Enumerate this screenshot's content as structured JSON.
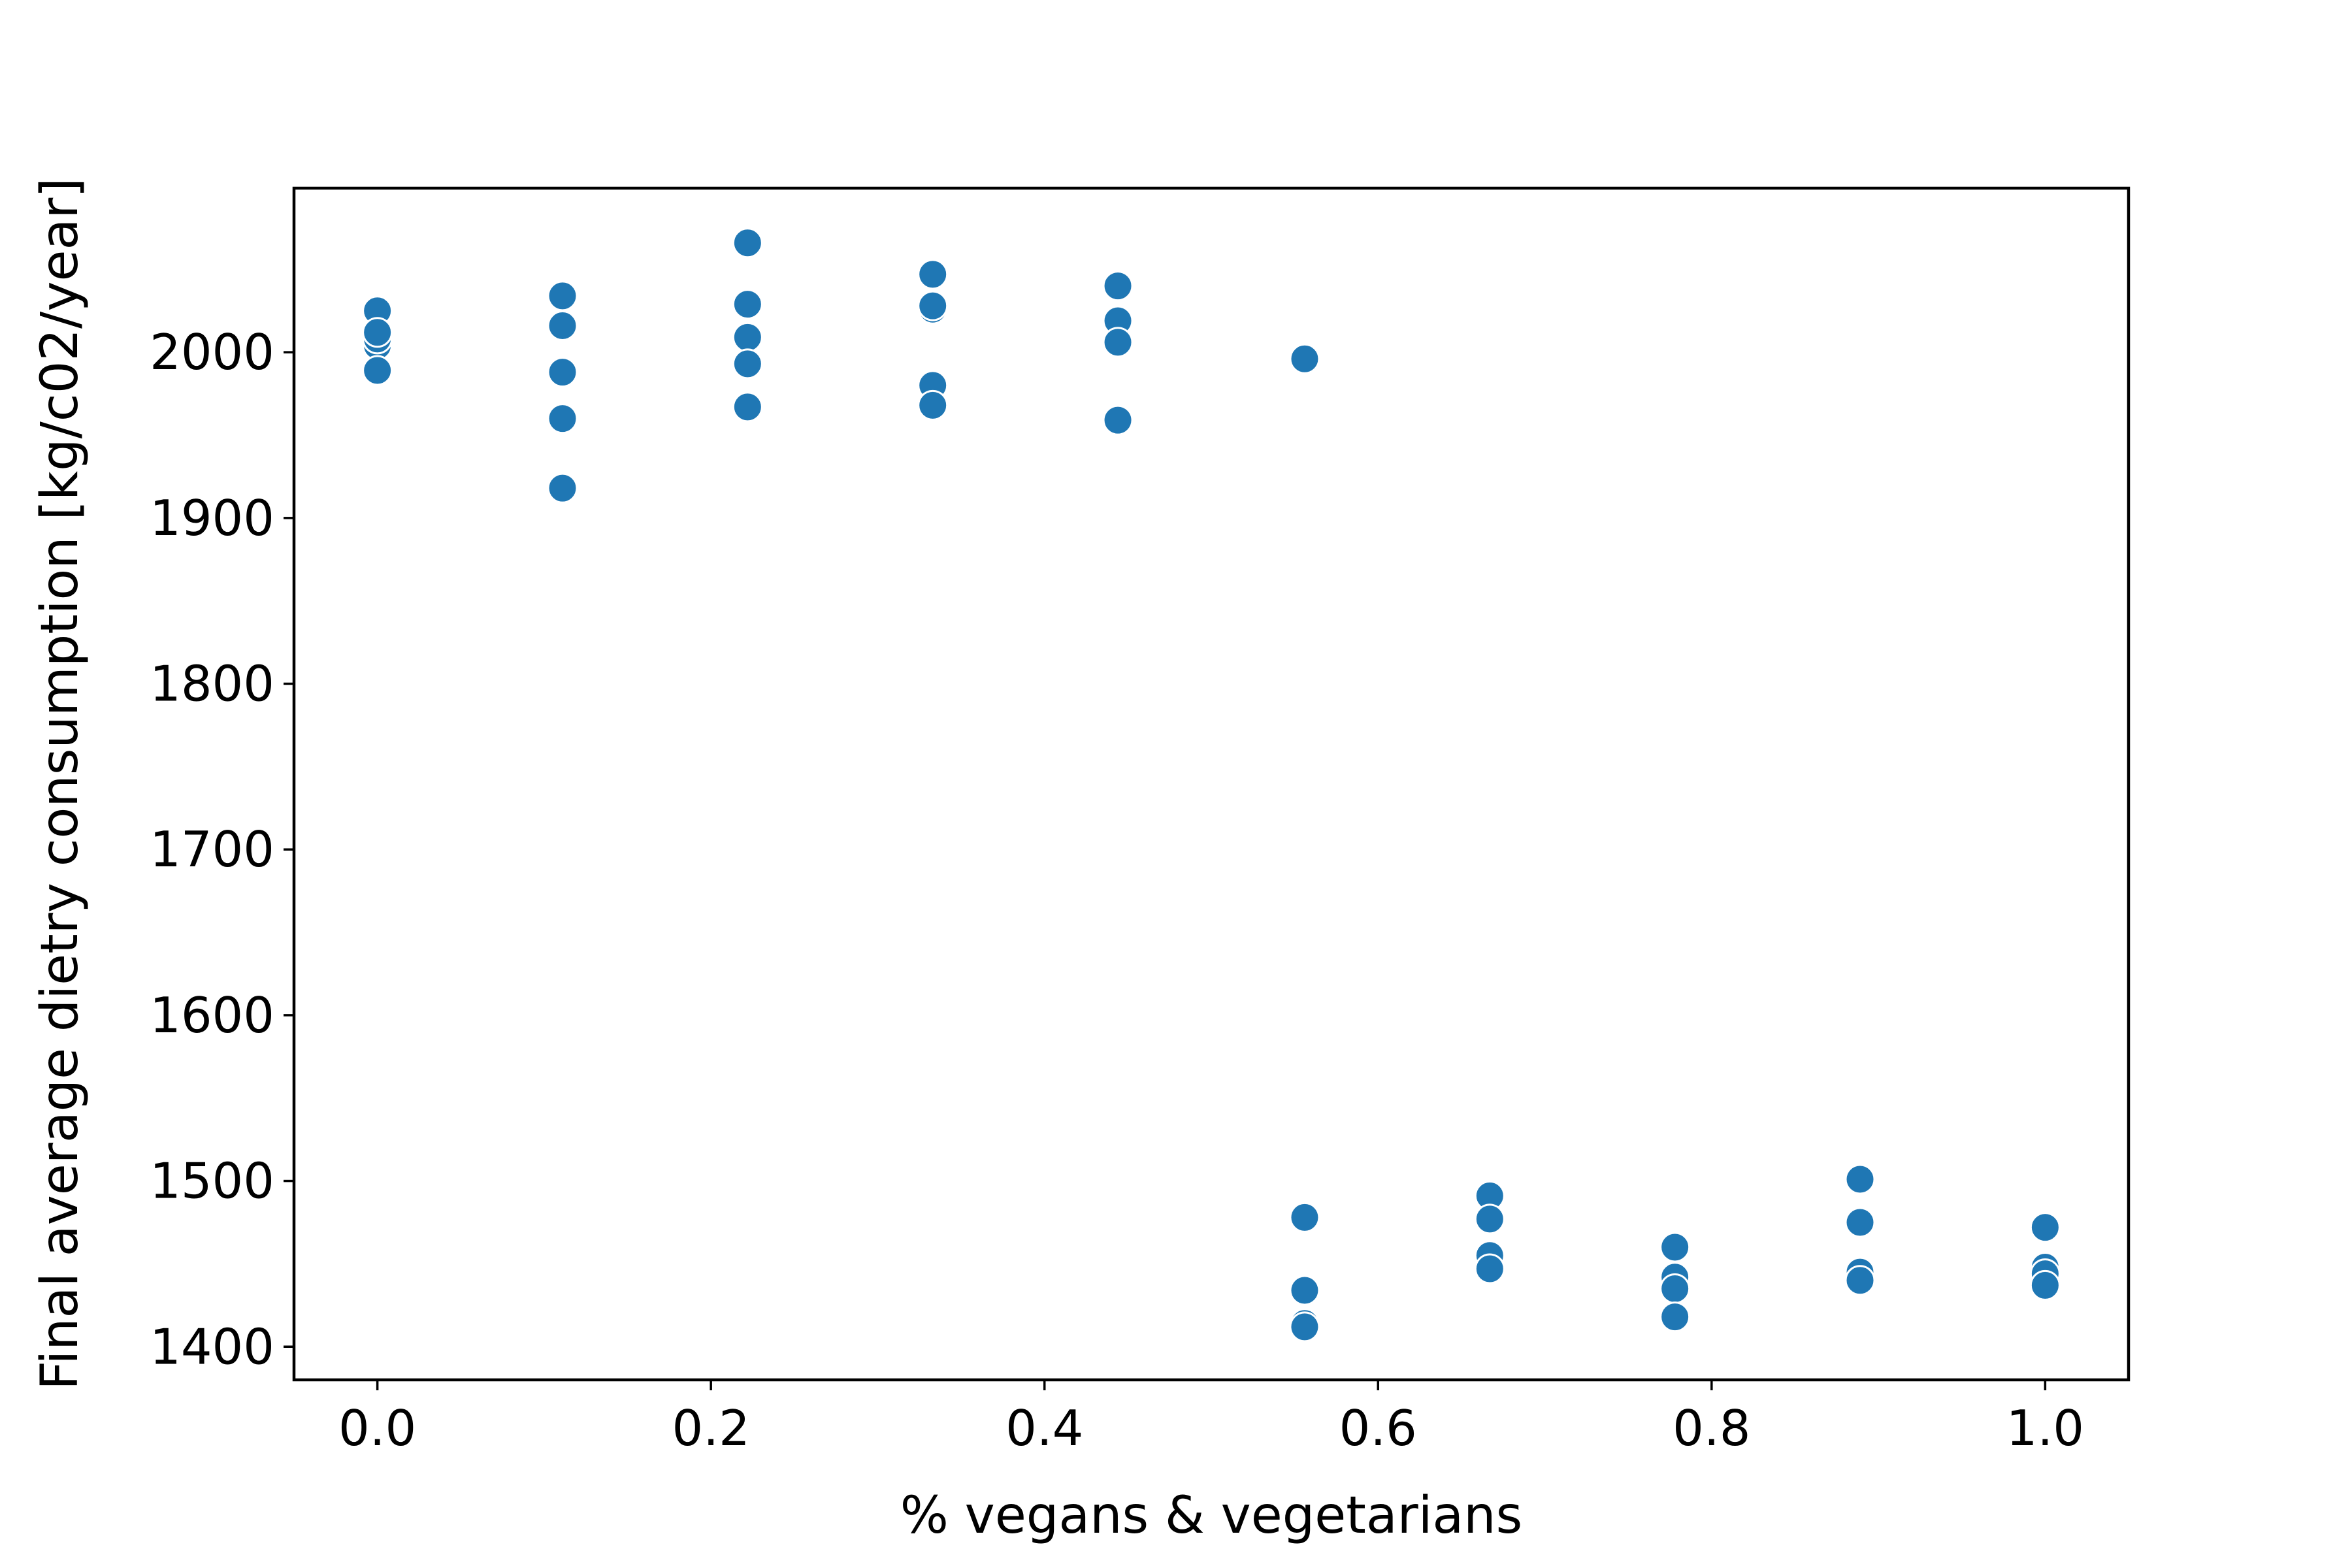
{
  "chart_data": {
    "type": "scatter",
    "xlabel": "% vegans & vegetarians",
    "ylabel": "Final average dietry consumption [kg/c02/year]",
    "xlim": [
      -0.05,
      1.05
    ],
    "ylim": [
      1380,
      2099
    ],
    "xticks": [
      0.0,
      0.2,
      0.4,
      0.6,
      0.8,
      1.0
    ],
    "xtick_labels": [
      "0.0",
      "0.2",
      "0.4",
      "0.6",
      "0.8",
      "1.0"
    ],
    "yticks": [
      1400,
      1500,
      1600,
      1700,
      1800,
      1900,
      2000
    ],
    "ytick_labels": [
      "1400",
      "1500",
      "1600",
      "1700",
      "1800",
      "1900",
      "2000"
    ],
    "grid": false,
    "marker_color": "#1f77b4",
    "points": [
      {
        "x": 0.0,
        "y": 2025
      },
      {
        "x": 0.0,
        "y": 2004
      },
      {
        "x": 0.0,
        "y": 2008
      },
      {
        "x": 0.0,
        "y": 1989
      },
      {
        "x": 0.0,
        "y": 2012
      },
      {
        "x": 0.111,
        "y": 2034
      },
      {
        "x": 0.111,
        "y": 2016
      },
      {
        "x": 0.111,
        "y": 1988
      },
      {
        "x": 0.111,
        "y": 1960
      },
      {
        "x": 0.111,
        "y": 1918
      },
      {
        "x": 0.222,
        "y": 2066
      },
      {
        "x": 0.222,
        "y": 2029
      },
      {
        "x": 0.222,
        "y": 2009
      },
      {
        "x": 0.222,
        "y": 1993
      },
      {
        "x": 0.222,
        "y": 1967
      },
      {
        "x": 0.333,
        "y": 2047
      },
      {
        "x": 0.333,
        "y": 2026
      },
      {
        "x": 0.333,
        "y": 2028
      },
      {
        "x": 0.333,
        "y": 1980
      },
      {
        "x": 0.333,
        "y": 1968
      },
      {
        "x": 0.444,
        "y": 2040
      },
      {
        "x": 0.444,
        "y": 2019
      },
      {
        "x": 0.444,
        "y": 2006
      },
      {
        "x": 0.444,
        "y": 1959
      },
      {
        "x": 0.556,
        "y": 1996
      },
      {
        "x": 0.556,
        "y": 1478
      },
      {
        "x": 0.556,
        "y": 1434
      },
      {
        "x": 0.556,
        "y": 1414
      },
      {
        "x": 0.556,
        "y": 1412
      },
      {
        "x": 0.667,
        "y": 1491
      },
      {
        "x": 0.667,
        "y": 1477
      },
      {
        "x": 0.667,
        "y": 1455
      },
      {
        "x": 0.667,
        "y": 1447
      },
      {
        "x": 0.778,
        "y": 1460
      },
      {
        "x": 0.778,
        "y": 1442
      },
      {
        "x": 0.778,
        "y": 1435
      },
      {
        "x": 0.778,
        "y": 1418
      },
      {
        "x": 0.889,
        "y": 1501
      },
      {
        "x": 0.889,
        "y": 1475
      },
      {
        "x": 0.889,
        "y": 1445
      },
      {
        "x": 0.889,
        "y": 1440
      },
      {
        "x": 1.0,
        "y": 1472
      },
      {
        "x": 1.0,
        "y": 1448
      },
      {
        "x": 1.0,
        "y": 1444
      },
      {
        "x": 1.0,
        "y": 1437
      }
    ]
  }
}
